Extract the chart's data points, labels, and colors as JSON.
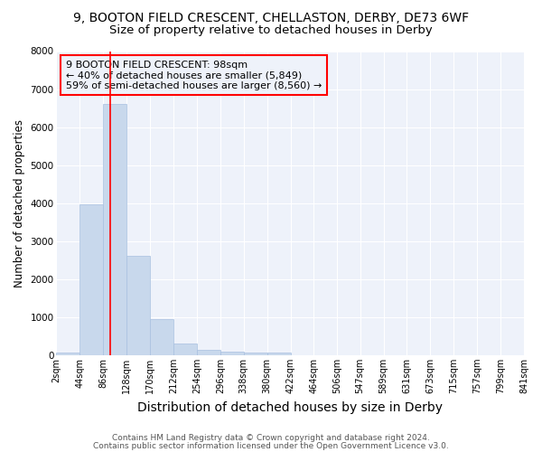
{
  "title_line1": "9, BOOTON FIELD CRESCENT, CHELLASTON, DERBY, DE73 6WF",
  "title_line2": "Size of property relative to detached houses in Derby",
  "xlabel": "Distribution of detached houses by size in Derby",
  "ylabel": "Number of detached properties",
  "bar_color": "#c8d8ec",
  "bar_edge_color": "#a8c0e0",
  "bin_edges": [
    2,
    44,
    86,
    128,
    170,
    212,
    254,
    296,
    338,
    380,
    422,
    464,
    506,
    547,
    589,
    631,
    673,
    715,
    757,
    799,
    841
  ],
  "bar_heights": [
    75,
    3980,
    6600,
    2620,
    960,
    310,
    130,
    100,
    60,
    60,
    0,
    0,
    0,
    0,
    0,
    0,
    0,
    0,
    0,
    0
  ],
  "property_size": 98,
  "red_line_x": 98,
  "annotation_text1": "9 BOOTON FIELD CRESCENT: 98sqm",
  "annotation_text2": "← 40% of detached houses are smaller (5,849)",
  "annotation_text3": "59% of semi-detached houses are larger (8,560) →",
  "ylim": [
    0,
    8000
  ],
  "xlim": [
    2,
    841
  ],
  "tick_labels": [
    "2sqm",
    "44sqm",
    "86sqm",
    "128sqm",
    "170sqm",
    "212sqm",
    "254sqm",
    "296sqm",
    "338sqm",
    "380sqm",
    "422sqm",
    "464sqm",
    "506sqm",
    "547sqm",
    "589sqm",
    "631sqm",
    "673sqm",
    "715sqm",
    "757sqm",
    "799sqm",
    "841sqm"
  ],
  "tick_positions": [
    2,
    44,
    86,
    128,
    170,
    212,
    254,
    296,
    338,
    380,
    422,
    464,
    506,
    547,
    589,
    631,
    673,
    715,
    757,
    799,
    841
  ],
  "footnote1": "Contains HM Land Registry data © Crown copyright and database right 2024.",
  "footnote2": "Contains public sector information licensed under the Open Government Licence v3.0.",
  "background_color": "#ffffff",
  "plot_bg_color": "#eef2fa",
  "grid_color": "#ffffff",
  "title1_fontsize": 10,
  "title2_fontsize": 9.5,
  "xlabel_fontsize": 10,
  "ylabel_fontsize": 8.5,
  "tick_fontsize": 7,
  "footnote_fontsize": 6.5,
  "annotation_fontsize": 8
}
